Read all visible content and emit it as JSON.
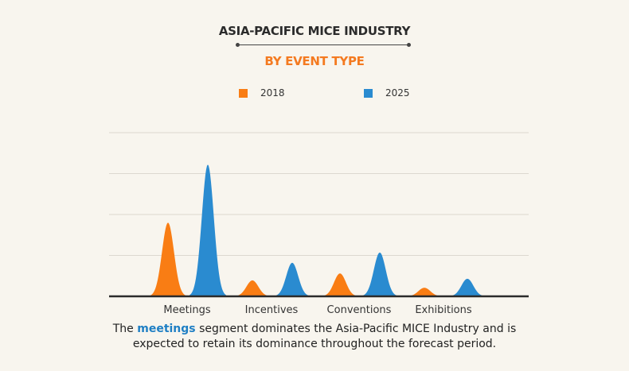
{
  "header": {
    "title": "ASIA-PACIFIC MICE INDUSTRY",
    "subtitle": "BY EVENT TYPE"
  },
  "colors": {
    "2018": "#f97d14",
    "2025": "#2a8bd0",
    "accent": "#f47a20",
    "highlight": "#1f7fc4"
  },
  "chart_data": {
    "type": "area",
    "title": "ASIA-PACIFIC MICE INDUSTRY",
    "subtitle": "BY EVENT TYPE",
    "categories": [
      "Meetings",
      "Incentives",
      "Conventions",
      "Exhibitions"
    ],
    "series": [
      {
        "name": "2018",
        "values": [
          1.8,
          0.39,
          0.56,
          0.21
        ]
      },
      {
        "name": "2025",
        "values": [
          3.22,
          0.82,
          1.07,
          0.43
        ]
      }
    ],
    "xlabel": "",
    "ylabel": "",
    "ylim": [
      0,
      4.15
    ],
    "grid": true,
    "legend": "top",
    "note": "Values are relative (no axis labels shown); one gridline interval = 1 unit"
  },
  "caption": {
    "prefix": "The ",
    "highlight": "meetings",
    "suffix": " segment dominates the Asia-Pacific MICE Industry and is",
    "line2": "expected to retain its dominance throughout the forecast period."
  }
}
